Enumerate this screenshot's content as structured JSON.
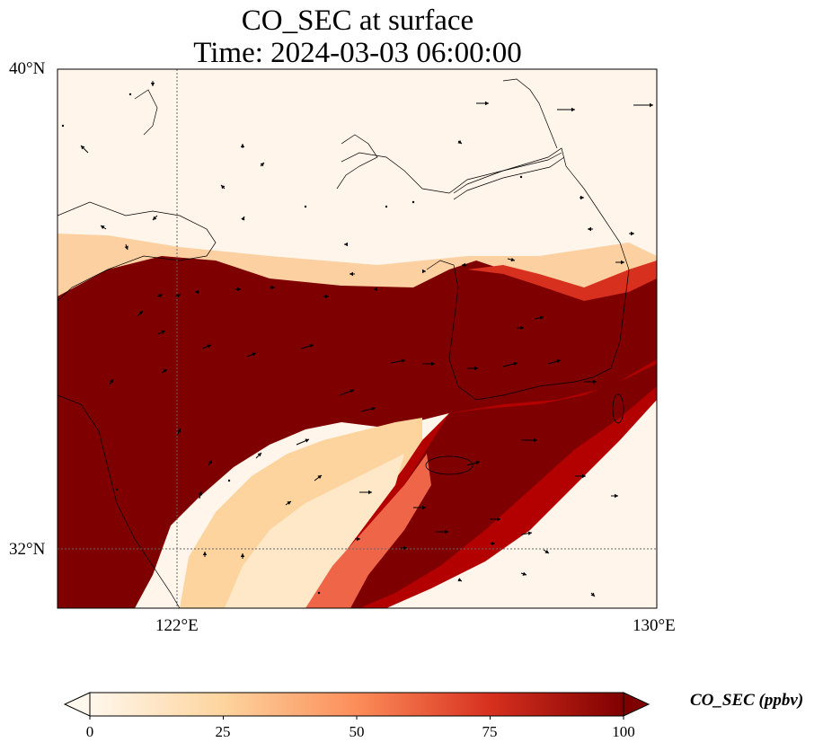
{
  "title": {
    "line1": "CO_SEC at surface",
    "line2": "Time: 2024-03-03 06:00:00"
  },
  "map": {
    "lat_labels": [
      "40°N",
      "32°N"
    ],
    "lon_labels": [
      "122°E",
      "130°E"
    ],
    "extent": {
      "lon_min": 120,
      "lon_max": 130,
      "lat_min": 31,
      "lat_max": 40
    },
    "gridlines": {
      "lon": [
        122
      ],
      "lat": [
        32
      ],
      "style": "dotted"
    },
    "variable": "CO_SEC",
    "units": "ppbv",
    "plume_description_colors": {
      "low": "#fff5eb",
      "mid": "#fdae6b",
      "high": "#7f0000"
    },
    "wind_vectors": "shown"
  },
  "colorbar": {
    "label": "CO_SEC (ppbv)",
    "ticks": [
      "0",
      "25",
      "50",
      "75",
      "100"
    ],
    "min": 0,
    "max": 100,
    "colormap": "OrRd",
    "extend": "both"
  }
}
